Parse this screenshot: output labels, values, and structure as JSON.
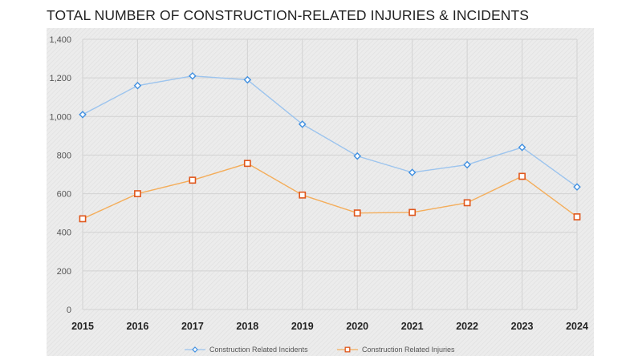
{
  "chart_data": {
    "type": "line",
    "title": "TOTAL NUMBER OF CONSTRUCTION-RELATED INJURIES & INCIDENTS",
    "xlabel": "",
    "ylabel": "",
    "categories": [
      "2015",
      "2016",
      "2017",
      "2018",
      "2019",
      "2020",
      "2021",
      "2022",
      "2023",
      "2024"
    ],
    "ylim": [
      0,
      1400
    ],
    "yticks": [
      0,
      200,
      400,
      600,
      800,
      1000,
      1200,
      1400
    ],
    "ytick_labels": [
      "0",
      "200",
      "400",
      "600",
      "800",
      "1,000",
      "1,200",
      "1,400"
    ],
    "grid": true,
    "legend_position": "bottom",
    "series": [
      {
        "name": "Construction Related Incidents",
        "values": [
          1010,
          1160,
          1210,
          1190,
          960,
          795,
          710,
          750,
          840,
          635
        ],
        "color": "#9cc4ee",
        "marker": "diamond",
        "marker_color": "#3f8fe0"
      },
      {
        "name": "Construction Related Injuries",
        "values": [
          470,
          600,
          670,
          757,
          593,
          500,
          503,
          553,
          690,
          480
        ],
        "color": "#f4ad5a",
        "marker": "square",
        "marker_color": "#e0561b"
      }
    ]
  }
}
